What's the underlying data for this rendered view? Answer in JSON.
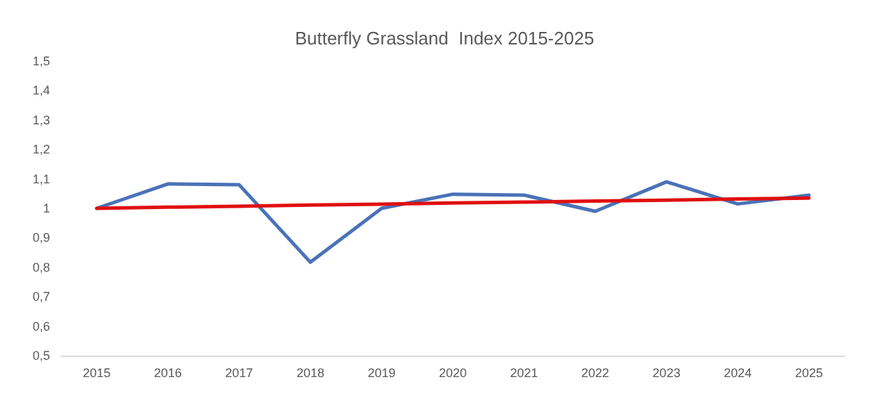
{
  "chart_data": {
    "type": "line",
    "title": "Butterfly Grassland  Index 2015-2025",
    "categories": [
      "2015",
      "2016",
      "2017",
      "2018",
      "2019",
      "2020",
      "2021",
      "2022",
      "2023",
      "2024",
      "2025"
    ],
    "series": [
      {
        "color": "#4a72b8",
        "values": [
          1.0,
          1.083,
          1.08,
          0.817,
          1.0,
          1.048,
          1.045,
          0.99,
          1.09,
          1.015,
          1.045
        ]
      },
      {
        "type": "line",
        "color": "#e01010",
        "values": [
          1.0,
          1.004,
          1.007,
          1.011,
          1.014,
          1.018,
          1.021,
          1.025,
          1.028,
          1.032,
          1.035
        ]
      }
    ],
    "ylim": [
      0.5,
      1.5
    ],
    "yticks": [
      {
        "value": 0.5,
        "label": "0,5"
      },
      {
        "value": 0.6,
        "label": "0,6"
      },
      {
        "value": 0.7,
        "label": "0,7"
      },
      {
        "value": 0.8,
        "label": "0,8"
      },
      {
        "value": 0.9,
        "label": "0,9"
      },
      1,
      {
        "value": 1.1,
        "label": "1,1"
      },
      {
        "value": 1.2,
        "label": "1,2"
      },
      {
        "value": 1.3,
        "label": "1,3"
      },
      {
        "value": 1.4,
        "label": "1,4"
      },
      {
        "value": 1.5,
        "label": "1,5"
      }
    ],
    "grid": false,
    "marker": "none",
    "line_style": "solid"
  }
}
